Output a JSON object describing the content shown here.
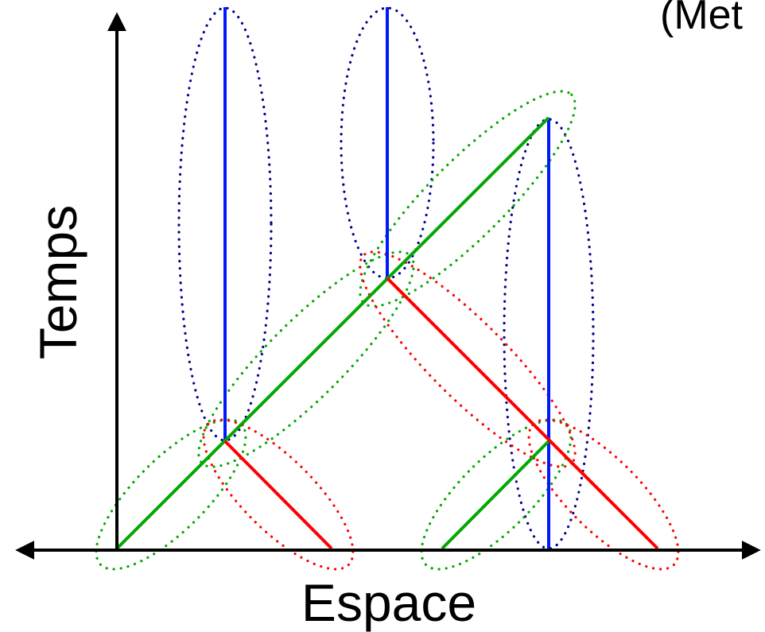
{
  "axes": {
    "x_label": "Espace",
    "y_label": "Temps"
  },
  "corner_label": "(Met",
  "colors": {
    "axis": "#000000",
    "vertical_worldline": "#0018ff",
    "vertical_envelope": "#000090",
    "right_moving": "#00a800",
    "left_moving": "#ff0000"
  },
  "legend": []
}
